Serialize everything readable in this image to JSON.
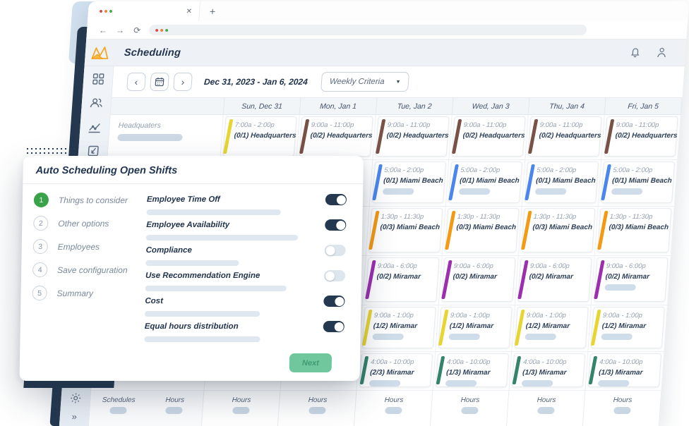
{
  "browser": {
    "tab_close": "✕",
    "new_tab": "+",
    "nav": {
      "back": "←",
      "forward": "→",
      "reload": "⟳"
    },
    "dot_colors": [
      "#df4b3e",
      "#e8813a",
      "#3fae52"
    ]
  },
  "header": {
    "title": "Scheduling",
    "icons": [
      "bell-icon",
      "user-icon"
    ],
    "logo": "orange-fox-logo"
  },
  "sidebar": {
    "icons": [
      "dashboard-icon",
      "users-icon",
      "analytics-icon",
      "import-icon"
    ],
    "bottom_icons": [
      "settings-icon",
      "collapse-icon"
    ],
    "collapse_glyph": "»"
  },
  "toolbar": {
    "prev_glyph": "‹",
    "next_glyph": "›",
    "date_range": "Dec 31, 2023 - Jan 6, 2024",
    "view_selector": "Weekly Criteria",
    "caret": "▼"
  },
  "calendar": {
    "days": [
      "Sun, Dec 31",
      "Mon, Jan 1",
      "Tue, Jan 2",
      "Wed, Jan 3",
      "Thu, Jan 4",
      "Fri, Jan 5"
    ],
    "row_label": "Headquaters",
    "rows": [
      {
        "cards": [
          {
            "col": 0,
            "time": "7:00a - 2:00p",
            "name": "(0/1) Headquarters",
            "color": "yellow",
            "pill": false
          },
          {
            "col": 1,
            "time": "9:00a - 11:00p",
            "name": "(0/2) Headquarters",
            "color": "brown",
            "pill": false
          },
          {
            "col": 2,
            "time": "9:00a - 11:00p",
            "name": "(0/2) Headquarters",
            "color": "brown",
            "pill": false
          },
          {
            "col": 3,
            "time": "9:00a - 11:00p",
            "name": "(0/2) Headquarters",
            "color": "brown",
            "pill": false
          },
          {
            "col": 4,
            "time": "9:00a - 11:00p",
            "name": "(0/2) Headquarters",
            "color": "brown",
            "pill": false
          },
          {
            "col": 5,
            "time": "9:00a - 11:00p",
            "name": "(0/2) Headquarters",
            "color": "brown",
            "pill": false
          }
        ]
      },
      {
        "cards": [
          {
            "col": 2,
            "time": "5:00a - 2:00p",
            "name": "(0/1) Miami Beach",
            "color": "blue",
            "pill": true
          },
          {
            "col": 3,
            "time": "5:00a - 2:00p",
            "name": "(0/1) Miami Beach",
            "color": "blue",
            "pill": true
          },
          {
            "col": 4,
            "time": "5:00a - 2:00p",
            "name": "(0/1) Miami Beach",
            "color": "blue",
            "pill": true
          },
          {
            "col": 5,
            "time": "5:00a - 2:00p",
            "name": "(0/1) Miami Beach",
            "color": "blue",
            "pill": true
          }
        ]
      },
      {
        "cards": [
          {
            "col": 2,
            "time": "1:30p - 11:30p",
            "name": "(0/3) Miami Beach",
            "color": "orange",
            "pill": false
          },
          {
            "col": 3,
            "time": "1:30p - 11:30p",
            "name": "(0/3) Miami Beach",
            "color": "orange",
            "pill": false
          },
          {
            "col": 4,
            "time": "1:30p - 11:30p",
            "name": "(0/3) Miami Beach",
            "color": "orange",
            "pill": false
          },
          {
            "col": 5,
            "time": "1:30p - 11:30p",
            "name": "(0/3) Miami Beach",
            "color": "orange",
            "pill": false
          }
        ]
      },
      {
        "cards": [
          {
            "col": 2,
            "time": "9:00a - 6:00p",
            "name": "(0/2) Miramar",
            "color": "purple",
            "pill": false
          },
          {
            "col": 3,
            "time": "9:00a - 6:00p",
            "name": "(0/2) Miramar",
            "color": "purple",
            "pill": false
          },
          {
            "col": 4,
            "time": "9:00a - 6:00p",
            "name": "(0/2) Miramar",
            "color": "purple",
            "pill": false
          },
          {
            "col": 5,
            "time": "9:00a - 6:00p",
            "name": "(0/2) Miramar",
            "color": "purple",
            "pill": true
          }
        ]
      },
      {
        "cards": [
          {
            "col": 2,
            "time": "9:00a - 1:00p",
            "name": "(1/2) Miramar",
            "color": "yellow",
            "pill": true
          },
          {
            "col": 3,
            "time": "9:00a - 1:00p",
            "name": "(1/2) Miramar",
            "color": "yellow",
            "pill": true
          },
          {
            "col": 4,
            "time": "9:00a - 1:00p",
            "name": "(1/2) Miramar",
            "color": "yellow",
            "pill": true
          },
          {
            "col": 5,
            "time": "9:00a - 1:00p",
            "name": "(1/2) Miramar",
            "color": "yellow",
            "pill": true
          }
        ]
      },
      {
        "cards": [
          {
            "col": 2,
            "time": "4:00a - 10:00p",
            "name": "(2/3) Miramar",
            "color": "teal",
            "pill": true
          },
          {
            "col": 3,
            "time": "4:00a - 10:00p",
            "name": "(1/3) Miramar",
            "color": "teal",
            "pill": true
          },
          {
            "col": 4,
            "time": "4:00a - 10:00p",
            "name": "(1/3) Miramar",
            "color": "teal",
            "pill": true
          },
          {
            "col": 5,
            "time": "4:00a - 10:00p",
            "name": "(1/3) Miramar",
            "color": "teal",
            "pill": true
          }
        ]
      }
    ]
  },
  "footer": {
    "label_cells": [
      "Schedules",
      "Hours"
    ],
    "day_cell": "Hours"
  },
  "modal": {
    "title": "Auto Scheduling Open Shifts",
    "steps": [
      {
        "num": "1",
        "label": "Things to consider",
        "active": true
      },
      {
        "num": "2",
        "label": "Other options",
        "active": false
      },
      {
        "num": "3",
        "label": "Employees",
        "active": false
      },
      {
        "num": "4",
        "label": "Save configuration",
        "active": false
      },
      {
        "num": "5",
        "label": "Summary",
        "active": false
      }
    ],
    "options": [
      {
        "label": "Employee Time Off",
        "on": true,
        "bar": 190
      },
      {
        "label": "Employee Availability",
        "on": true,
        "bar": 215
      },
      {
        "label": "Compliance",
        "on": false,
        "bar": 132
      },
      {
        "label": "Use Recommendation Engine",
        "on": false,
        "bar": 200
      },
      {
        "label": "Cost",
        "on": true,
        "bar": 163
      },
      {
        "label": "Equal hours distribution",
        "on": true,
        "bar": 164
      }
    ],
    "next_label": "Next"
  },
  "colors": {
    "navy": "#24384f",
    "step_green": "#38a349",
    "next_green": "#70c79d",
    "card_yellow": "#e8d531",
    "card_brown": "#7a5245",
    "card_blue": "#4a86ee",
    "card_orange": "#f39913",
    "card_purple": "#9b2fae",
    "card_teal": "#34836b",
    "logo_orange": "#f5a623"
  }
}
